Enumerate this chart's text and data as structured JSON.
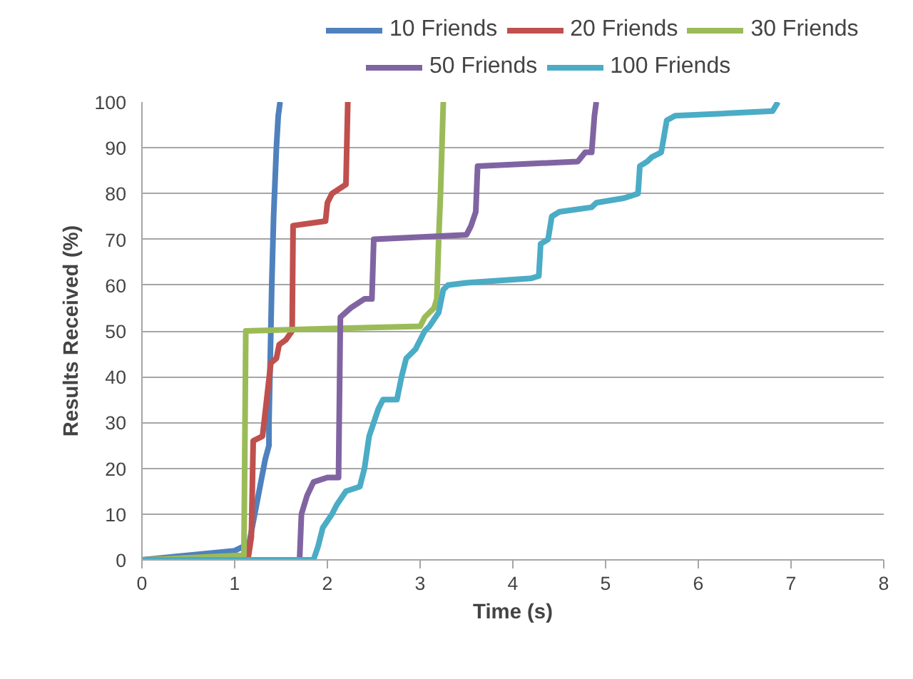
{
  "chart_data": {
    "type": "line",
    "xlabel": "Time (s)",
    "ylabel": "Results Received (%)",
    "xlim": [
      0,
      8
    ],
    "ylim": [
      0,
      100
    ],
    "xticks": [
      0,
      1,
      2,
      3,
      4,
      5,
      6,
      7,
      8
    ],
    "yticks": [
      0,
      10,
      20,
      30,
      40,
      50,
      60,
      70,
      80,
      90,
      100
    ],
    "grid": "y",
    "legend": "top",
    "marker": "none",
    "line_style": "solid",
    "series": [
      {
        "name": "10 Friends",
        "color": "#4f81bd",
        "x": [
          0,
          1.0,
          1.1,
          1.15,
          1.33,
          1.37,
          1.37,
          1.39,
          1.4,
          1.42,
          1.45,
          1.47,
          1.49
        ],
        "values": [
          0,
          2,
          3,
          3,
          22,
          25,
          30,
          50,
          60,
          75,
          90,
          97,
          100
        ]
      },
      {
        "name": "20 Friends",
        "color": "#c0504d",
        "x": [
          0,
          1.15,
          1.18,
          1.2,
          1.3,
          1.39,
          1.45,
          1.48,
          1.55,
          1.62,
          1.63,
          1.98,
          2.0,
          2.05,
          2.2,
          2.22
        ],
        "values": [
          0,
          1,
          5,
          26,
          27,
          43,
          44,
          47,
          48,
          50,
          73,
          74,
          78,
          80,
          82,
          100
        ]
      },
      {
        "name": "30 Friends",
        "color": "#9bbb59",
        "x": [
          0,
          1.1,
          1.12,
          2.0,
          3.0,
          3.05,
          3.15,
          3.18,
          3.2,
          3.22,
          3.25
        ],
        "values": [
          0,
          1,
          50,
          50.5,
          51,
          53,
          55,
          57,
          70,
          80,
          100
        ]
      },
      {
        "name": "50 Friends",
        "color": "#8064a2",
        "x": [
          0,
          1.7,
          1.72,
          1.78,
          1.85,
          2.0,
          2.12,
          2.14,
          2.25,
          2.4,
          2.48,
          2.5,
          3.5,
          3.55,
          3.6,
          3.62,
          4.7,
          4.78,
          4.85,
          4.88,
          4.9
        ],
        "values": [
          0,
          0,
          10,
          14,
          17,
          18,
          18,
          53,
          55,
          57,
          57,
          70,
          71,
          73,
          76,
          86,
          87,
          89,
          89,
          97,
          100
        ]
      },
      {
        "name": "100 Friends",
        "color": "#4bacc6",
        "x": [
          0,
          1.85,
          1.9,
          1.95,
          2.05,
          2.1,
          2.2,
          2.35,
          2.4,
          2.45,
          2.5,
          2.55,
          2.6,
          2.75,
          2.8,
          2.85,
          2.95,
          3.0,
          3.05,
          3.1,
          3.2,
          3.25,
          3.3,
          3.5,
          4.2,
          4.28,
          4.3,
          4.38,
          4.42,
          4.5,
          4.85,
          4.9,
          5.2,
          5.35,
          5.37,
          5.45,
          5.5,
          5.6,
          5.66,
          5.75,
          6.8,
          6.86
        ],
        "values": [
          0,
          0,
          3,
          7,
          10,
          12,
          15,
          16,
          20,
          27,
          30,
          33,
          35,
          35,
          40,
          44,
          46,
          48,
          50,
          51,
          54,
          59,
          60,
          60.5,
          61.5,
          62,
          69,
          70,
          75,
          76,
          77,
          78,
          79,
          80,
          86,
          87,
          88,
          89,
          96,
          97,
          98,
          100
        ]
      }
    ]
  }
}
